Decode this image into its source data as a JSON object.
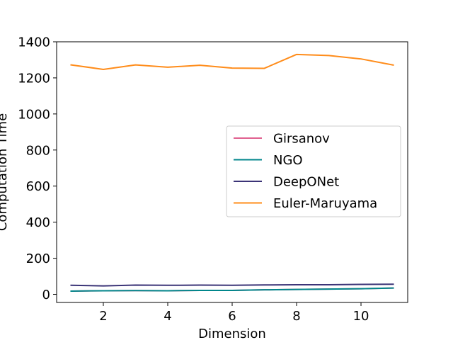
{
  "chart_data": {
    "type": "line",
    "title": "",
    "xlabel": "Dimension",
    "ylabel": "Computation Time",
    "xlim": [
      0.55,
      11.45
    ],
    "ylim": [
      -45,
      1400
    ],
    "x_ticks": [
      2,
      4,
      6,
      8,
      10
    ],
    "y_ticks": [
      0,
      200,
      400,
      600,
      800,
      1000,
      1200,
      1400
    ],
    "grid": false,
    "legend_position": "center-right",
    "x": [
      1,
      2,
      3,
      4,
      5,
      6,
      7,
      8,
      9,
      10,
      11
    ],
    "series": [
      {
        "name": "Girsanov",
        "color": "#e0608f",
        "values": [
          18,
          20,
          21,
          20,
          22,
          22,
          25,
          27,
          29,
          31,
          35
        ]
      },
      {
        "name": "NGO",
        "color": "#00868b",
        "values": [
          18,
          20,
          21,
          20,
          22,
          22,
          25,
          27,
          29,
          31,
          35
        ]
      },
      {
        "name": "DeepONet",
        "color": "#3b3477",
        "values": [
          50,
          47,
          51,
          50,
          51,
          50,
          52,
          53,
          53,
          55,
          56
        ]
      },
      {
        "name": "Euler-Maruyama",
        "color": "#ff8c1a",
        "values": [
          1272,
          1247,
          1272,
          1259,
          1270,
          1254,
          1253,
          1330,
          1324,
          1305,
          1271
        ]
      }
    ]
  }
}
